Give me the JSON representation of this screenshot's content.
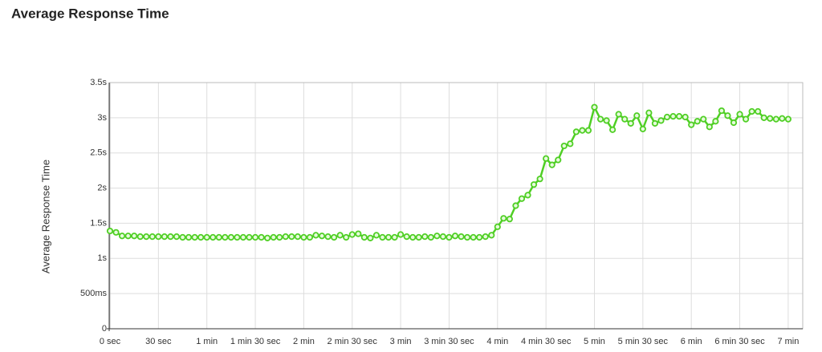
{
  "chart_data": {
    "type": "line",
    "title": "Average Response Time",
    "y_label": "Average Response Time",
    "xlim": [
      0,
      429
    ],
    "ylim": [
      0,
      3.5
    ],
    "grid": true,
    "xticks": [
      {
        "value": 0,
        "label": "0 sec"
      },
      {
        "value": 30,
        "label": "30 sec"
      },
      {
        "value": 60,
        "label": "1 min"
      },
      {
        "value": 90,
        "label": "1 min 30 sec"
      },
      {
        "value": 120,
        "label": "2 min"
      },
      {
        "value": 150,
        "label": "2 min 30 sec"
      },
      {
        "value": 180,
        "label": "3 min"
      },
      {
        "value": 210,
        "label": "3 min 30 sec"
      },
      {
        "value": 240,
        "label": "4 min"
      },
      {
        "value": 270,
        "label": "4 min 30 sec"
      },
      {
        "value": 300,
        "label": "5 min"
      },
      {
        "value": 330,
        "label": "5 min 30 sec"
      },
      {
        "value": 360,
        "label": "6 min"
      },
      {
        "value": 390,
        "label": "6 min 30 sec"
      },
      {
        "value": 420,
        "label": "7 min"
      }
    ],
    "yticks": [
      0,
      {
        "value": 0.5,
        "label": "500ms"
      },
      {
        "value": 1,
        "label": "1s"
      },
      {
        "value": 1.5,
        "label": "1.5s"
      },
      {
        "value": 2,
        "label": "2s"
      },
      {
        "value": 2.5,
        "label": "2.5s"
      },
      {
        "value": 3,
        "label": "3s"
      },
      {
        "value": 3.5,
        "label": "3.5s"
      }
    ],
    "x": [
      0,
      3.75,
      7.5,
      11.25,
      15,
      18.75,
      22.5,
      26.25,
      30,
      33.75,
      37.5,
      41.25,
      45,
      48.75,
      52.5,
      56.25,
      60,
      63.75,
      67.5,
      71.25,
      75,
      78.75,
      82.5,
      86.25,
      90,
      93.75,
      97.5,
      101.25,
      105,
      108.75,
      112.5,
      116.25,
      120,
      123.75,
      127.5,
      131.25,
      135,
      138.75,
      142.5,
      146.25,
      150,
      153.75,
      157.5,
      161.25,
      165,
      168.75,
      172.5,
      176.25,
      180,
      183.75,
      187.5,
      191.25,
      195,
      198.75,
      202.5,
      206.25,
      210,
      213.75,
      217.5,
      221.25,
      225,
      228.75,
      232.5,
      236.25,
      240,
      243.75,
      247.5,
      251.25,
      255,
      258.75,
      262.5,
      266.25,
      270,
      273.75,
      277.5,
      281.25,
      285,
      288.75,
      292.5,
      296.25,
      300,
      303.75,
      307.5,
      311.25,
      315,
      318.75,
      322.5,
      326.25,
      330,
      333.75,
      337.5,
      341.25,
      345,
      348.75,
      352.5,
      356.25,
      360,
      363.75,
      367.5,
      371.25,
      375,
      378.75,
      382.5,
      386.25,
      390,
      393.75,
      397.5,
      401.25,
      405,
      408.75,
      412.5,
      416.25,
      420
    ],
    "series": [
      {
        "color": "#4fcf24",
        "values": [
          1.39,
          1.37,
          1.32,
          1.32,
          1.32,
          1.31,
          1.31,
          1.31,
          1.31,
          1.31,
          1.31,
          1.31,
          1.3,
          1.3,
          1.3,
          1.3,
          1.3,
          1.3,
          1.3,
          1.3,
          1.3,
          1.3,
          1.3,
          1.3,
          1.3,
          1.3,
          1.29,
          1.3,
          1.3,
          1.31,
          1.31,
          1.31,
          1.3,
          1.3,
          1.33,
          1.32,
          1.31,
          1.3,
          1.33,
          1.3,
          1.34,
          1.35,
          1.3,
          1.29,
          1.33,
          1.3,
          1.3,
          1.3,
          1.34,
          1.31,
          1.3,
          1.3,
          1.31,
          1.3,
          1.32,
          1.31,
          1.3,
          1.32,
          1.31,
          1.3,
          1.3,
          1.3,
          1.31,
          1.33,
          1.45,
          1.57,
          1.56,
          1.75,
          1.85,
          1.9,
          2.05,
          2.13,
          2.42,
          2.33,
          2.4,
          2.6,
          2.63,
          2.8,
          2.82,
          2.82,
          3.15,
          2.98,
          2.96,
          2.83,
          3.05,
          2.98,
          2.92,
          3.03,
          2.84,
          3.07,
          2.92,
          2.96,
          3.01,
          3.02,
          3.02,
          3.01,
          2.9,
          2.95,
          2.98,
          2.87,
          2.95,
          3.1,
          3.03,
          2.93,
          3.05,
          2.98,
          3.09,
          3.09,
          3.0,
          2.99,
          2.98,
          2.99,
          2.98
        ]
      }
    ]
  }
}
